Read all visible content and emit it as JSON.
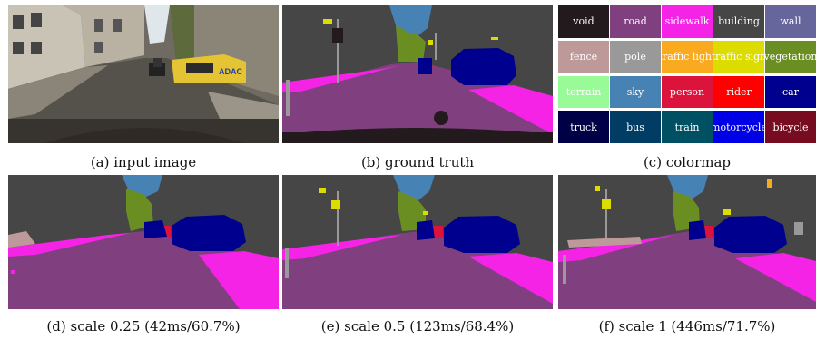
{
  "captions": {
    "a": "(a) input image",
    "b": "(b) ground truth",
    "c": "(c) colormap",
    "d": "(d) scale 0.25 (42ms/60.7%)",
    "e": "(e) scale 0.5 (123ms/68.4%)",
    "f": "(f) scale 1 (446ms/71.7%)"
  },
  "colormap": [
    {
      "label": "void",
      "color": "#231a1e"
    },
    {
      "label": "road",
      "color": "#80407f"
    },
    {
      "label": "sidewalk",
      "color": "#f423e6"
    },
    {
      "label": "building",
      "color": "#464646"
    },
    {
      "label": "wall",
      "color": "#66669c"
    },
    {
      "label": "fence",
      "color": "#be9999"
    },
    {
      "label": "pole",
      "color": "#999999"
    },
    {
      "label": "traffic light",
      "color": "#faaa1e"
    },
    {
      "label": "traffic sign",
      "color": "#dcdc00"
    },
    {
      "label": "vegetation",
      "color": "#6b8e23"
    },
    {
      "label": "terrain",
      "color": "#98fb98"
    },
    {
      "label": "sky",
      "color": "#4682b4"
    },
    {
      "label": "person",
      "color": "#dc143c"
    },
    {
      "label": "rider",
      "color": "#ff0000"
    },
    {
      "label": "car",
      "color": "#00008e"
    },
    {
      "label": "truck",
      "color": "#000046"
    },
    {
      "label": "bus",
      "color": "#003c64"
    },
    {
      "label": "train",
      "color": "#005064"
    },
    {
      "label": "motorcycle",
      "color": "#0000e6"
    },
    {
      "label": "bicycle",
      "color": "#770b20"
    }
  ],
  "ad_sign_text": "ADAC"
}
